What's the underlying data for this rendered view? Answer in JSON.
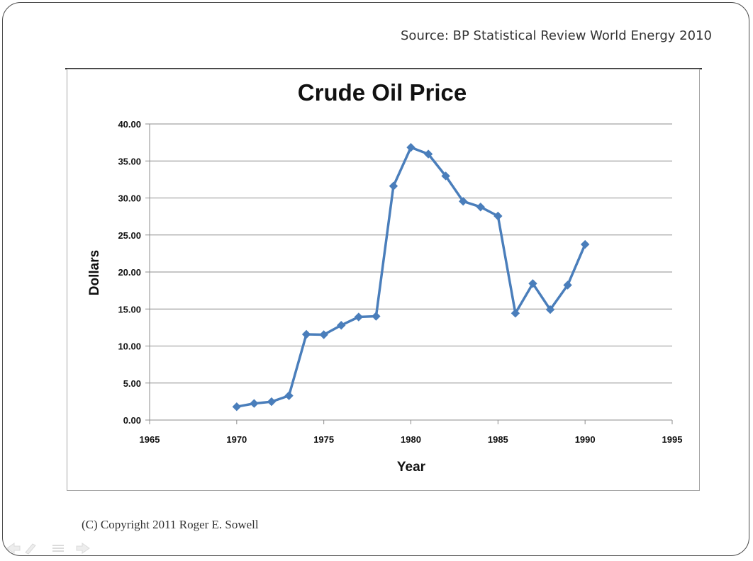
{
  "source_text": "Source: BP Statistical Review World Energy 2010",
  "copyright_text": "(C) Copyright 2011 Roger E. Sowell",
  "chart_data": {
    "type": "line",
    "title": "Crude Oil Price",
    "xlabel": "Year",
    "ylabel": "Dollars",
    "xlim": [
      1965,
      1995
    ],
    "ylim": [
      0,
      40
    ],
    "x_ticks": [
      1965,
      1970,
      1975,
      1980,
      1985,
      1990,
      1995
    ],
    "y_ticks": [
      "0.00",
      "5.00",
      "10.00",
      "15.00",
      "20.00",
      "25.00",
      "30.00",
      "35.00",
      "40.00"
    ],
    "grid": true,
    "marker": "diamond",
    "series_color": "#4a7ebb",
    "series": [
      {
        "x": [
          1970,
          1971,
          1972,
          1973,
          1974,
          1975,
          1976,
          1977,
          1978,
          1979,
          1980,
          1981,
          1982,
          1983,
          1984,
          1985,
          1986,
          1987,
          1988,
          1989,
          1990
        ],
        "values": [
          1.8,
          2.24,
          2.48,
          3.29,
          11.58,
          11.53,
          12.8,
          13.92,
          14.02,
          31.61,
          36.83,
          35.93,
          32.97,
          29.55,
          28.78,
          27.56,
          14.43,
          18.44,
          14.92,
          18.23,
          23.73
        ]
      }
    ]
  }
}
